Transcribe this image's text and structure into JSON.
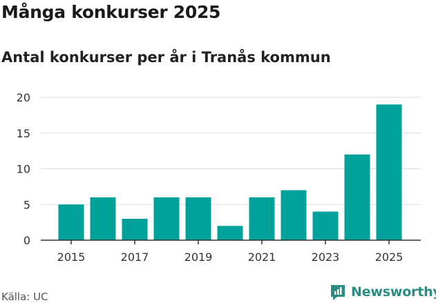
{
  "chart_data": {
    "type": "bar",
    "title": "Många konkurser 2025",
    "subtitle": "Antal konkurser per år i Tranås kommun",
    "categories": [
      "2015",
      "2016",
      "2017",
      "2018",
      "2019",
      "2020",
      "2021",
      "2022",
      "2023",
      "2024",
      "2025"
    ],
    "values": [
      5,
      6,
      3,
      6,
      6,
      2,
      6,
      7,
      4,
      12,
      19
    ],
    "x_tick_labels": [
      "2015",
      "2017",
      "2019",
      "2021",
      "2023",
      "2025"
    ],
    "y_ticks": [
      0,
      5,
      10,
      15,
      20
    ],
    "ylim": [
      0,
      20
    ],
    "grid": true,
    "bar_color": "#00a19a",
    "xlabel": "",
    "ylabel": ""
  },
  "footer": {
    "source": "Källa: UC",
    "brand": "Newsworthy",
    "brand_icon": "newsworthy-logo-icon",
    "brand_color": "#2a8d83"
  }
}
